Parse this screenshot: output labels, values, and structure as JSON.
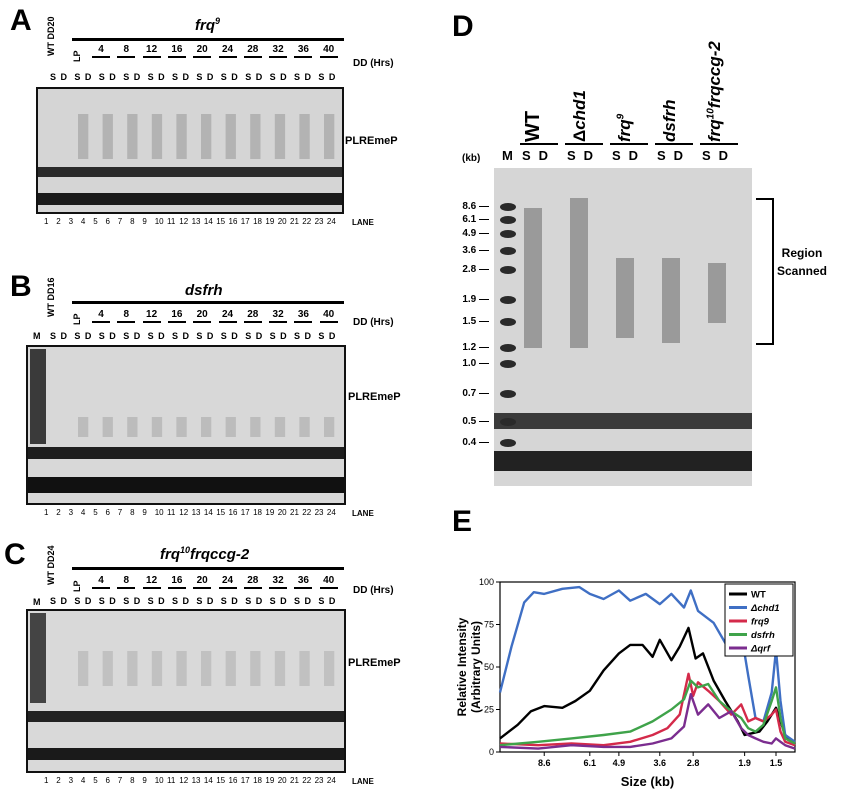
{
  "panels": {
    "A": {
      "letter": "A",
      "control": "WT DD20",
      "strain": "frq",
      "strain_sup": "9",
      "dd_label": "DD (Hrs)",
      "lp": "LP",
      "hours": [
        "4",
        "8",
        "12",
        "16",
        "20",
        "24",
        "28",
        "32",
        "36",
        "40"
      ],
      "probe": "PLREmeP",
      "lane_label": "LANE",
      "lanes": [
        "1",
        "2",
        "3",
        "4",
        "5",
        "6",
        "7",
        "8",
        "9",
        "10",
        "11",
        "12",
        "13",
        "14",
        "15",
        "16",
        "17",
        "18",
        "19",
        "20",
        "21",
        "22",
        "23",
        "24"
      ],
      "s": "S",
      "d": "D"
    },
    "B": {
      "letter": "B",
      "control": "WT DD16",
      "strain": "dsfrh",
      "dd_label": "DD (Hrs)",
      "lp": "LP",
      "hours": [
        "4",
        "8",
        "12",
        "16",
        "20",
        "24",
        "28",
        "32",
        "36",
        "40"
      ],
      "probe": "PLREmeP",
      "lane_label": "LANE",
      "marker": "M"
    },
    "C": {
      "letter": "C",
      "control": "WT DD24",
      "strain_a": "frq",
      "strain_a_sup": "10",
      "strain_b": "frqccg-2",
      "dd_label": "DD (Hrs)",
      "lp": "LP",
      "hours": [
        "4",
        "8",
        "12",
        "16",
        "20",
        "24",
        "28",
        "32",
        "36",
        "40"
      ],
      "probe": "PLREmeP",
      "lane_label": "LANE",
      "marker": "M"
    },
    "D": {
      "letter": "D",
      "kb_label": "(kb)",
      "marker": "M",
      "strains": [
        "WT",
        "Δchd1",
        "frq9",
        "dsfrh",
        "frq10frqccg-2"
      ],
      "sizes": [
        "8.6",
        "6.1",
        "4.9",
        "3.6",
        "2.8",
        "1.9",
        "1.5",
        "1.2",
        "1.0",
        "0.7",
        "0.5",
        "0.4"
      ],
      "region_line1": "Region",
      "region_line2": "Scanned"
    },
    "E": {
      "letter": "E"
    }
  },
  "chart_data": {
    "type": "line",
    "ylabel_line1": "Relative Intensity",
    "ylabel_line2": "(Arbitrary Units)",
    "xlabel": "Size (kb)",
    "ylim": [
      0,
      100
    ],
    "yticks": [
      "0",
      "25",
      "50",
      "75",
      "100"
    ],
    "xticks": [
      {
        "label": "8.6",
        "x": 8.6
      },
      {
        "label": "6.1",
        "x": 6.1
      },
      {
        "label": "4.9",
        "x": 4.9
      },
      {
        "label": "3.6",
        "x": 3.6
      },
      {
        "label": "2.8",
        "x": 2.8
      },
      {
        "label": "1.9",
        "x": 1.9
      },
      {
        "label": "1.5",
        "x": 1.5
      }
    ],
    "series": [
      {
        "name": "WT",
        "color": "#000000",
        "x": [
          12.0,
          10.5,
          9.5,
          8.6,
          7.5,
          6.8,
          6.1,
          5.5,
          4.9,
          4.5,
          4.1,
          3.8,
          3.6,
          3.3,
          3.1,
          2.9,
          2.75,
          2.6,
          2.4,
          2.2,
          2.0,
          1.9,
          1.8,
          1.7,
          1.6,
          1.5,
          1.45,
          1.4,
          1.3
        ],
        "y": [
          8,
          16,
          24,
          27,
          26,
          30,
          36,
          48,
          58,
          63,
          63,
          56,
          66,
          54,
          62,
          73,
          55,
          58,
          42,
          30,
          18,
          10,
          11,
          12,
          18,
          26,
          18,
          10,
          5
        ]
      },
      {
        "name": "Δchd1",
        "color": "#3f6fc4",
        "x": [
          12.0,
          11.0,
          10.0,
          9.3,
          8.6,
          7.5,
          6.6,
          6.1,
          5.5,
          4.9,
          4.5,
          4.0,
          3.6,
          3.3,
          3.0,
          2.85,
          2.7,
          2.4,
          2.1,
          1.95,
          1.85,
          1.75,
          1.65,
          1.55,
          1.5,
          1.45,
          1.4,
          1.3
        ],
        "y": [
          35,
          62,
          88,
          94,
          93,
          96,
          97,
          93,
          90,
          95,
          89,
          93,
          87,
          93,
          85,
          95,
          83,
          76,
          58,
          70,
          45,
          20,
          18,
          35,
          60,
          30,
          10,
          6
        ]
      },
      {
        "name": "frq9",
        "color": "#d42a4a",
        "x": [
          12.0,
          9.0,
          7.0,
          5.5,
          4.5,
          3.8,
          3.4,
          3.1,
          2.9,
          2.8,
          2.7,
          2.5,
          2.3,
          2.1,
          1.95,
          1.85,
          1.75,
          1.65,
          1.55,
          1.5,
          1.45,
          1.4,
          1.3
        ],
        "y": [
          5,
          4,
          5,
          4,
          6,
          10,
          14,
          22,
          46,
          33,
          41,
          36,
          30,
          22,
          28,
          18,
          20,
          18,
          22,
          25,
          12,
          6,
          4
        ]
      },
      {
        "name": "dsfrh",
        "color": "#3fa34a",
        "x": [
          12.0,
          9.0,
          7.0,
          5.5,
          4.5,
          3.8,
          3.3,
          3.0,
          2.85,
          2.7,
          2.5,
          2.3,
          2.1,
          1.95,
          1.85,
          1.75,
          1.65,
          1.55,
          1.5,
          1.45,
          1.4,
          1.3
        ],
        "y": [
          4,
          6,
          8,
          10,
          12,
          18,
          25,
          31,
          42,
          38,
          40,
          30,
          24,
          20,
          14,
          12,
          16,
          30,
          38,
          20,
          8,
          5
        ]
      },
      {
        "name": "Δqrf",
        "color": "#7b2d8f",
        "x": [
          12.0,
          9.0,
          7.0,
          5.5,
          4.5,
          3.8,
          3.3,
          3.0,
          2.85,
          2.7,
          2.5,
          2.3,
          2.1,
          1.95,
          1.85,
          1.75,
          1.65,
          1.55,
          1.5,
          1.45,
          1.4,
          1.3
        ],
        "y": [
          3,
          2,
          4,
          3,
          3,
          5,
          8,
          15,
          34,
          22,
          28,
          20,
          24,
          14,
          10,
          8,
          6,
          5,
          8,
          6,
          4,
          2
        ]
      }
    ]
  }
}
